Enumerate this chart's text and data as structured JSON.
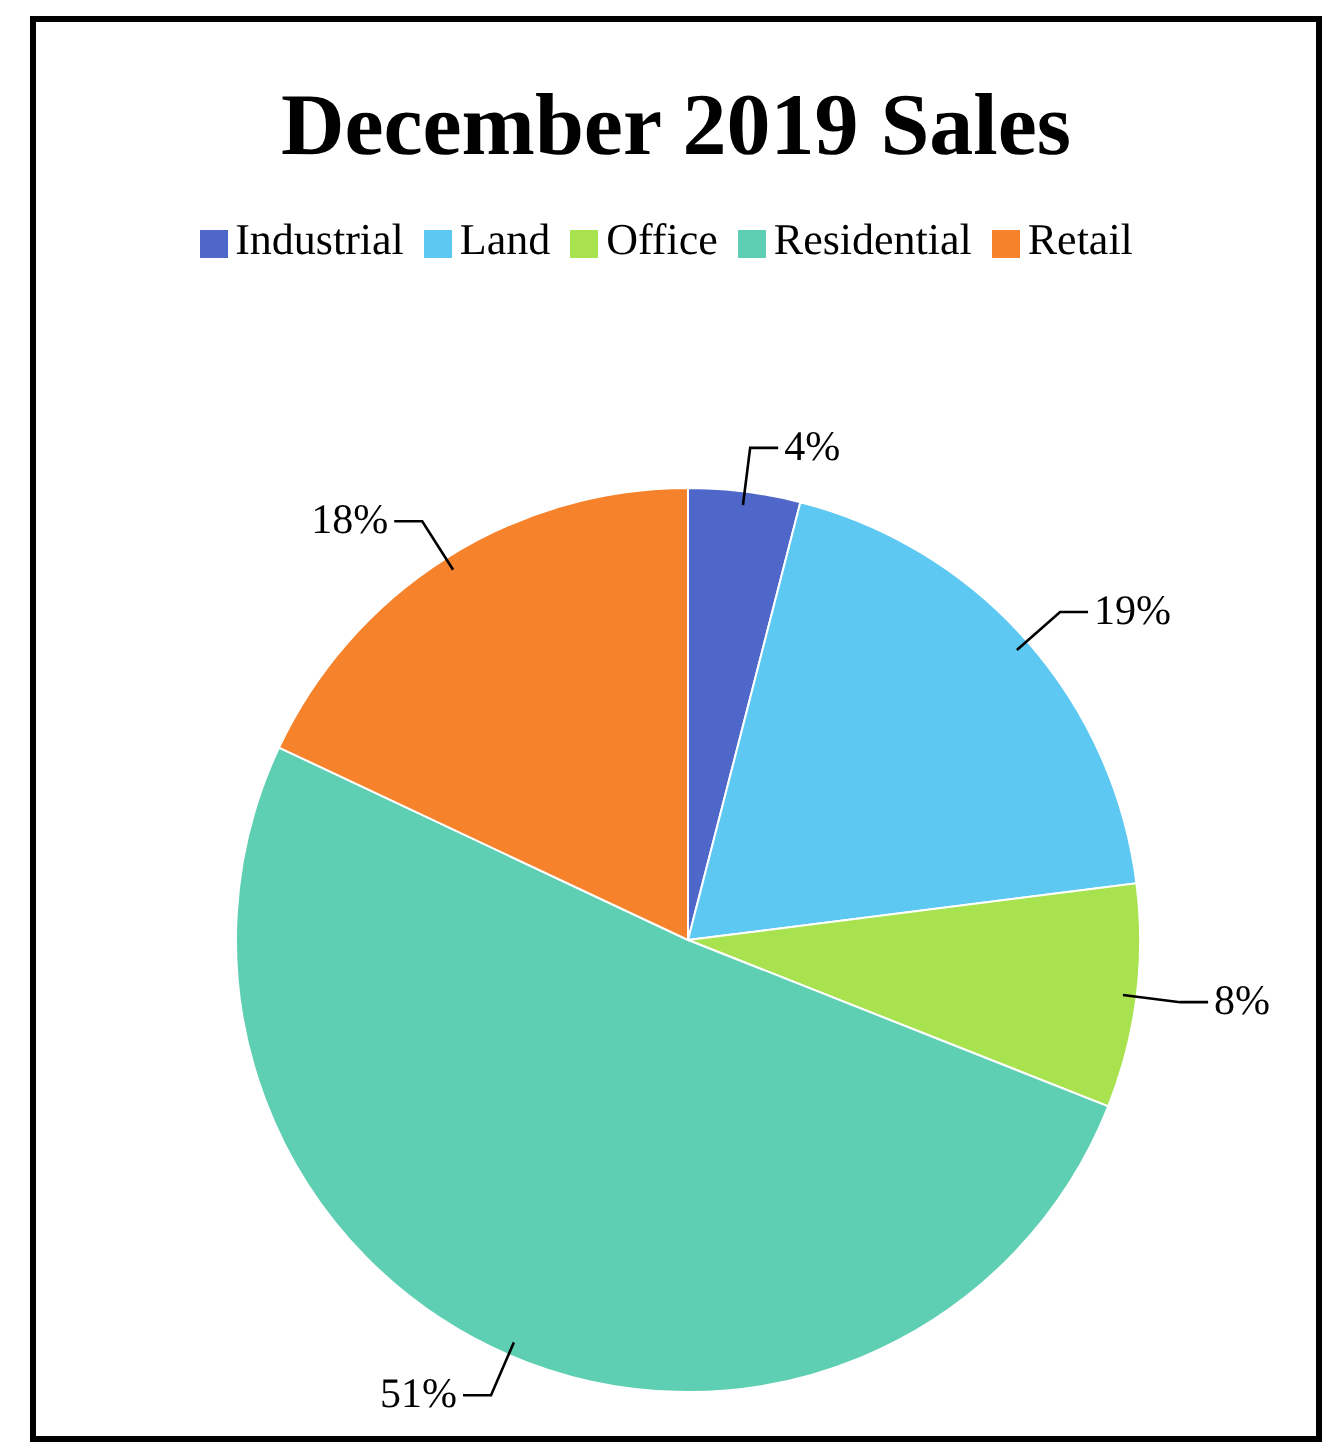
{
  "chart_data": {
    "type": "pie",
    "title": "December 2019 Sales",
    "categories": [
      "Industrial",
      "Land",
      "Office",
      "Residential",
      "Retail"
    ],
    "values": [
      4,
      19,
      8,
      51,
      18
    ],
    "value_labels": [
      "4%",
      "19%",
      "8%",
      "51%",
      "18%"
    ],
    "colors": [
      "#4f67c9",
      "#5dc8f2",
      "#a8e34f",
      "#5ecfb2",
      "#f6832b"
    ],
    "legend": "top"
  }
}
